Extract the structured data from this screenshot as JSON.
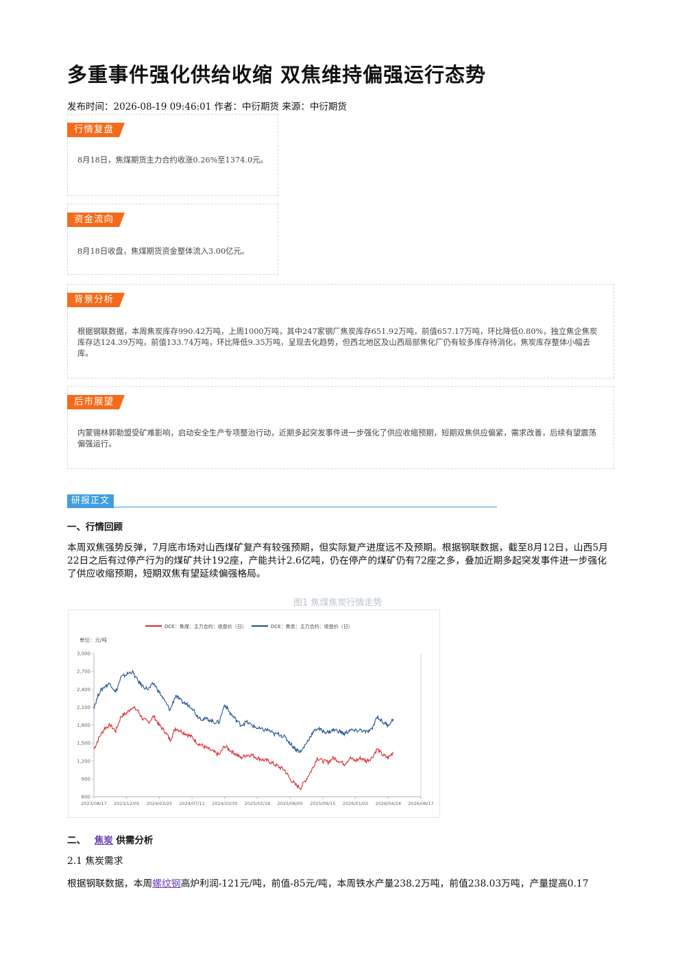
{
  "article": {
    "title": "多重事件强化供给收缩 双焦维持偏强运行态势",
    "meta": "发布时间：2026-08-19 09:46:01 作者：中衍期货 来源：中衍期货"
  },
  "boxes": [
    {
      "tag": "行情复盘",
      "text": "8月18日，焦煤期货主力合约收涨0.26%至1374.0元。"
    },
    {
      "tag": "资金流向",
      "text": "8月18日收盘，焦煤期货资金整体流入3.00亿元。"
    },
    {
      "tag": "背景分析",
      "text": "根据钢联数据，本周焦炭库存990.42万吨，上周1000万吨，其中247家钢厂焦炭库存651.92万吨，前值657.17万吨，环比降低0.80%，独立焦企焦炭库存达124.39万吨，前值133.74万吨，环比降低9.35万吨，呈现去化趋势，但西北地区及山西局部焦化厂仍有较多库存待消化，焦炭库存整体小幅去库。"
    },
    {
      "tag": "后市展望",
      "text": "内蒙锡林郭勒盟受矿难影响，启动安全生产专项整治行动，近期多起突发事件进一步强化了供应收缩预期，短期双焦供应偏紧，需求改善，后续有望震荡偏强运行。"
    }
  ],
  "report": {
    "section_label": "研报正文",
    "h1": "一、行情回顾",
    "p1": "本周双焦强势反弹，7月底市场对山西煤矿复产有较强预期，但实际复产进度远不及预期。根据钢联数据，截至8月12日，山西5月22日之后有过停产行为的煤矿共计192座，产能共计2.6亿吨，仍在停产的煤矿仍有72座之多，叠加近期多起突发事件进一步强化了供应收缩预期，短期双焦有望延续偏强格局。",
    "figure_caption": "图1 焦煤焦炭行情走势",
    "h2_prefix": "二、",
    "h2_link": "焦炭",
    "h2_suffix": "供需分析",
    "h3": "2.1 焦炭需求",
    "p2_prefix": "根据钢联数据，本周",
    "p2_link": "螺纹钢",
    "p2_suffix": "高炉利润-121元/吨，前值-85元/吨，本周铁水产量238.2万吨，前值238.03万吨，产量提高0.17"
  },
  "chart_data": {
    "type": "line",
    "ylabel": "单位：元/吨",
    "ylim": [
      600,
      3000
    ],
    "yticks": [
      "3,000",
      "2,700",
      "2,400",
      "2,100",
      "1,800",
      "1,500",
      "1,200",
      "900",
      "600"
    ],
    "xticks": [
      "2023/08/17",
      "2023/12/05",
      "2024/03/25",
      "2024/07/11",
      "2024/10/30",
      "2025/02/18",
      "2025/06/05",
      "2025/09/15",
      "2026/01/05",
      "2026/04/24",
      "2026/08/17"
    ],
    "series": [
      {
        "name": "DCE：焦煤：主力合约：收盘价（日）",
        "color": "#d9262c",
        "values": [
          1400,
          1600,
          1750,
          1800,
          1700,
          1950,
          2000,
          2100,
          2050,
          1900,
          1850,
          1950,
          1800,
          1700,
          1550,
          1750,
          1700,
          1650,
          1600,
          1500,
          1450,
          1400,
          1350,
          1300,
          1450,
          1380,
          1320,
          1250,
          1300,
          1300,
          1250,
          1220,
          1200,
          1150,
          1100,
          1050,
          900,
          800,
          750,
          900,
          1050,
          1250,
          1200,
          1180,
          1250,
          1200,
          1150,
          1250,
          1200,
          1250,
          1200,
          1250,
          1400,
          1300,
          1250,
          1350
        ]
      },
      {
        "name": "DCE：焦炭：主力合约：收盘价（日）",
        "color": "#1f4e8c",
        "values": [
          2100,
          2350,
          2450,
          2500,
          2350,
          2600,
          2650,
          2700,
          2550,
          2450,
          2400,
          2500,
          2350,
          2200,
          2050,
          2300,
          2200,
          2150,
          2100,
          1950,
          1900,
          1900,
          1850,
          1850,
          2150,
          2000,
          1900,
          1800,
          1850,
          1800,
          1750,
          1720,
          1720,
          1650,
          1650,
          1600,
          1500,
          1400,
          1350,
          1500,
          1650,
          1750,
          1700,
          1680,
          1720,
          1700,
          1650,
          1720,
          1700,
          1720,
          1680,
          1720,
          1950,
          1850,
          1800,
          1900
        ]
      }
    ]
  }
}
